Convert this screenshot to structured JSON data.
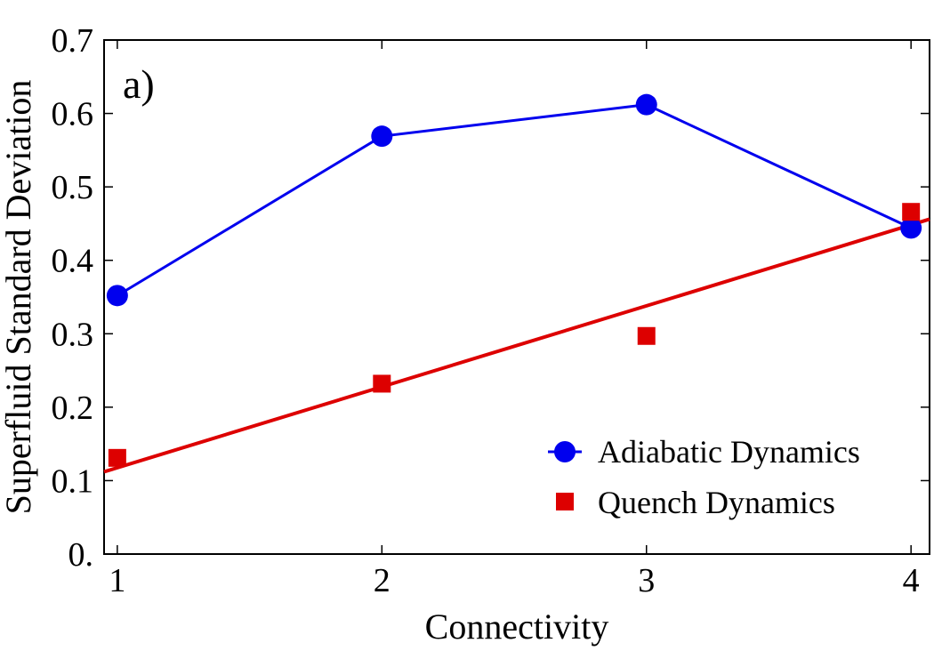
{
  "chart_data": {
    "type": "scatter",
    "panel_label": "a)",
    "xlabel": "Connectivity",
    "ylabel": "Superfluid Standard Deviation",
    "xlim": [
      0.95,
      4.07
    ],
    "ylim": [
      0,
      0.7
    ],
    "x_ticks": [
      1,
      2,
      3,
      4
    ],
    "x_tick_labels": [
      "1",
      "2",
      "3",
      "4"
    ],
    "y_ticks": [
      0,
      0.1,
      0.2,
      0.3,
      0.4,
      0.5,
      0.6,
      0.7
    ],
    "y_tick_labels": [
      "0.",
      "0.1",
      "0.2",
      "0.3",
      "0.4",
      "0.5",
      "0.6",
      "0.7"
    ],
    "series": [
      {
        "name": "Adiabatic Dynamics",
        "marker": "circle",
        "color": "#0000ee",
        "connected": true,
        "x": [
          1,
          2,
          3,
          4
        ],
        "y": [
          0.352,
          0.569,
          0.612,
          0.444
        ]
      },
      {
        "name": "Quench Dynamics",
        "marker": "square",
        "color": "#dd0000",
        "connected": false,
        "x": [
          1,
          2,
          3,
          4
        ],
        "y": [
          0.131,
          0.232,
          0.297,
          0.466
        ],
        "fit": {
          "type": "linear",
          "x": [
            0.95,
            4.07
          ],
          "y": [
            0.112,
            0.456
          ]
        }
      }
    ],
    "legend": {
      "position": "bottom-right"
    },
    "grid": false
  }
}
